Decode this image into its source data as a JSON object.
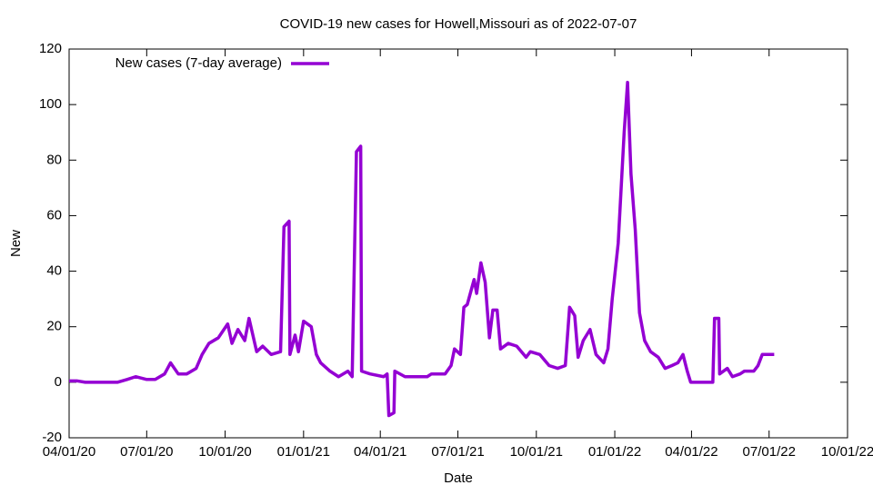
{
  "chart_data": {
    "type": "line",
    "title": "COVID-19 new cases for Howell,Missouri as of 2022-07-07",
    "x_label": "Date",
    "y_label": "New",
    "legend_position": "top-left",
    "xlim": [
      "2020-04-01",
      "2022-10-01"
    ],
    "xticks": [
      {
        "value": "2020-04-01",
        "label": "04/01/20"
      },
      {
        "value": "2020-07-01",
        "label": "07/01/20"
      },
      {
        "value": "2020-10-01",
        "label": "10/01/20"
      },
      {
        "value": "2021-01-01",
        "label": "01/01/21"
      },
      {
        "value": "2021-04-01",
        "label": "04/01/21"
      },
      {
        "value": "2021-07-01",
        "label": "07/01/21"
      },
      {
        "value": "2021-10-01",
        "label": "10/01/21"
      },
      {
        "value": "2022-01-01",
        "label": "01/01/22"
      },
      {
        "value": "2022-04-01",
        "label": "04/01/22"
      },
      {
        "value": "2022-07-01",
        "label": "07/01/22"
      },
      {
        "value": "2022-10-01",
        "label": "10/01/22"
      }
    ],
    "ylim": [
      -20,
      120
    ],
    "yticks": [
      -20,
      0,
      20,
      40,
      60,
      80,
      100,
      120
    ],
    "x": [
      "2020-04-01",
      "2020-04-10",
      "2020-04-20",
      "2020-05-28",
      "2020-06-08",
      "2020-06-18",
      "2020-07-01",
      "2020-07-11",
      "2020-07-22",
      "2020-07-29",
      "2020-08-07",
      "2020-08-17",
      "2020-08-28",
      "2020-09-04",
      "2020-09-12",
      "2020-09-23",
      "2020-10-04",
      "2020-10-09",
      "2020-10-16",
      "2020-10-24",
      "2020-10-29",
      "2020-11-07",
      "2020-11-14",
      "2020-11-24",
      "2020-12-05",
      "2020-12-09",
      "2020-12-15",
      "2020-12-16",
      "2020-12-22",
      "2020-12-26",
      "2021-01-01",
      "2021-01-10",
      "2021-01-16",
      "2021-01-21",
      "2021-02-01",
      "2021-02-11",
      "2021-02-22",
      "2021-02-27",
      "2021-03-04",
      "2021-03-09",
      "2021-03-10",
      "2021-03-20",
      "2021-04-05",
      "2021-04-09",
      "2021-04-11",
      "2021-04-17",
      "2021-04-18",
      "2021-04-30",
      "2021-05-10",
      "2021-05-26",
      "2021-05-31",
      "2021-06-16",
      "2021-06-23",
      "2021-06-27",
      "2021-07-04",
      "2021-07-08",
      "2021-07-12",
      "2021-07-20",
      "2021-07-23",
      "2021-07-28",
      "2021-08-02",
      "2021-08-07",
      "2021-08-11",
      "2021-08-16",
      "2021-08-20",
      "2021-08-29",
      "2021-09-08",
      "2021-09-19",
      "2021-09-24",
      "2021-10-05",
      "2021-10-16",
      "2021-10-26",
      "2021-11-04",
      "2021-11-09",
      "2021-11-15",
      "2021-11-19",
      "2021-11-25",
      "2021-12-03",
      "2021-12-10",
      "2021-12-19",
      "2021-12-24",
      "2021-12-29",
      "2022-01-05",
      "2022-01-12",
      "2022-01-16",
      "2022-01-20",
      "2022-01-25",
      "2022-01-30",
      "2022-02-05",
      "2022-02-12",
      "2022-02-21",
      "2022-03-01",
      "2022-03-09",
      "2022-03-16",
      "2022-03-22",
      "2022-03-27",
      "2022-03-31",
      "2022-04-26",
      "2022-04-28",
      "2022-05-03",
      "2022-05-04",
      "2022-05-13",
      "2022-05-19",
      "2022-05-28",
      "2022-06-02",
      "2022-06-13",
      "2022-06-18",
      "2022-06-23",
      "2022-07-07"
    ],
    "series": [
      {
        "name": "New cases (7-day average)",
        "color": "#9400d3",
        "values": [
          0.5,
          0.5,
          0,
          0,
          1,
          2,
          1,
          1,
          3,
          7,
          3,
          3,
          5,
          10,
          14,
          16,
          21,
          14,
          19,
          15,
          23,
          11,
          13,
          10,
          11,
          56,
          58,
          10,
          17,
          11,
          22,
          20,
          10,
          7,
          4,
          2,
          4,
          2,
          83,
          85,
          4,
          3,
          2,
          3,
          -12,
          -11,
          4,
          2,
          2,
          2,
          3,
          3,
          6,
          12,
          10,
          27,
          28,
          37,
          32,
          43,
          36,
          16,
          26,
          26,
          12,
          14,
          13,
          9,
          11,
          10,
          6,
          5,
          6,
          27,
          24,
          9,
          15,
          19,
          10,
          7,
          12,
          30,
          50,
          90,
          108,
          75,
          55,
          25,
          15,
          11,
          9,
          5,
          6,
          7,
          10,
          4,
          0,
          0,
          23,
          23,
          3,
          5,
          2,
          3,
          4,
          4,
          6,
          10,
          10
        ]
      }
    ]
  }
}
